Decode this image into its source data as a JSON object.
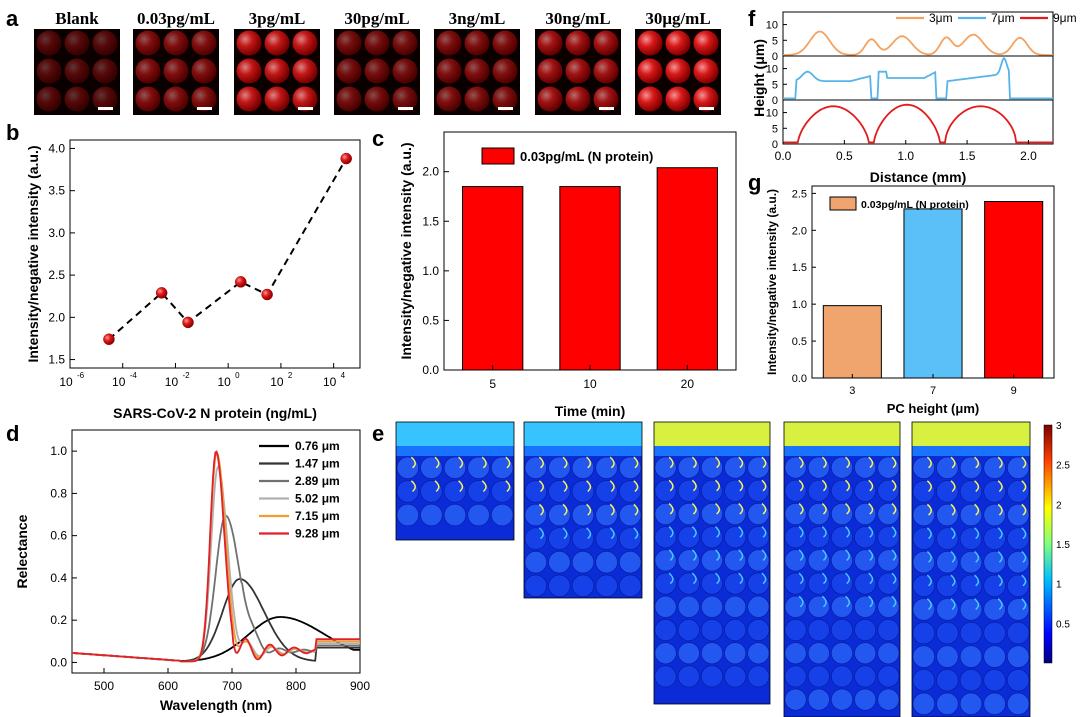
{
  "panel_letters": {
    "a": "a",
    "b": "b",
    "c": "c",
    "d": "d",
    "e": "e",
    "f": "f",
    "g": "g"
  },
  "colors": {
    "red": "#e41a1c",
    "orange": "#f4a261",
    "blue": "#56b4e9",
    "black": "#000000",
    "bar_red": "#ff0000",
    "bar_orange": "#f0a46e",
    "bar_blue": "#5bc0f8"
  },
  "chart_data": [
    {
      "id": "a",
      "type": "image-grid",
      "labels": [
        "Blank",
        "0.03pg/mL",
        "3pg/mL",
        "30pg/mL",
        "3ng/mL",
        "30ng/mL",
        "30μg/mL"
      ],
      "brightness": [
        0.35,
        0.55,
        0.85,
        0.5,
        0.55,
        0.7,
        0.95
      ]
    },
    {
      "id": "b",
      "type": "scatter",
      "xscale": "log",
      "x": [
        3e-05,
        0.003,
        0.03,
        3,
        30,
        30000
      ],
      "y": [
        1.74,
        2.29,
        1.94,
        2.42,
        2.27,
        3.88
      ],
      "xlabel": "SARS-CoV-2 N protein (ng/mL)",
      "ylabel": "Intensity/negative intensity (a.u.)",
      "xlim_exp": [
        -6,
        5
      ],
      "xticks_exp": [
        -6,
        -4,
        -2,
        0,
        2,
        4
      ],
      "xtick_labels": [
        "10",
        "10",
        "10",
        "10",
        "10",
        "10"
      ],
      "xtick_exps": [
        "-6",
        "-4",
        "-2",
        "0",
        "2",
        "4"
      ],
      "ylim": [
        1.4,
        4.1
      ],
      "yticks": [
        "1.5",
        "2.0",
        "2.5",
        "3.0",
        "3.5",
        "4.0"
      ]
    },
    {
      "id": "c",
      "type": "bar",
      "categories": [
        "5",
        "10",
        "20"
      ],
      "values": [
        1.85,
        1.85,
        2.04
      ],
      "legend": "0.03pg/mL (N protein)",
      "xlabel": "Time (min)",
      "ylabel": "Intensity/negative intensity (a.u.)",
      "ylim": [
        0,
        2.4
      ],
      "yticks": [
        "0.0",
        "0.5",
        "1.0",
        "1.5",
        "2.0"
      ]
    },
    {
      "id": "d",
      "type": "line",
      "xlabel": "Wavelength (nm)",
      "ylabel": "Relectance",
      "xlim": [
        450,
        900
      ],
      "ylim": [
        -0.05,
        1.1
      ],
      "xticks": [
        "500",
        "600",
        "700",
        "800",
        "900"
      ],
      "yticks": [
        "0.0",
        "0.2",
        "0.4",
        "0.6",
        "0.8",
        "1.0"
      ],
      "series": [
        {
          "name": "0.76 μm",
          "color": "#000000",
          "peak": 775,
          "amp": 0.21,
          "width": 70,
          "ripple": 0
        },
        {
          "name": "1.47 μm",
          "color": "#333333",
          "peak": 712,
          "amp": 0.39,
          "width": 38,
          "ripple": 0
        },
        {
          "name": "2.89 μm",
          "color": "#707070",
          "peak": 690,
          "amp": 0.69,
          "width": 22,
          "ripple": 0.03
        },
        {
          "name": "5.02 μm",
          "color": "#b0b0b0",
          "peak": 678,
          "amp": 0.92,
          "width": 15,
          "ripple": 0.05
        },
        {
          "name": "7.15 μm",
          "color": "#f39c32",
          "peak": 676,
          "amp": 0.99,
          "width": 14,
          "ripple": 0.06
        },
        {
          "name": "9.28 μm",
          "color": "#e0202a",
          "peak": 675,
          "amp": 0.995,
          "width": 13,
          "ripple": 0.08
        }
      ]
    },
    {
      "id": "e",
      "type": "heatmap",
      "colorbar_ticks": [
        "3",
        "2.5",
        "2",
        "1.5",
        "1",
        "0.5"
      ],
      "colorbar_range": [
        0,
        3
      ],
      "columns": [
        3,
        5,
        8,
        15,
        15
      ]
    },
    {
      "id": "f",
      "type": "line",
      "xlabel": "Distance (mm)",
      "ylabel": "Height (μm)",
      "xlim": [
        0,
        2.2
      ],
      "xticks": [
        "0.0",
        "0.5",
        "1.0",
        "1.5",
        "2.0"
      ],
      "yticks": [
        "0",
        "5",
        "10"
      ],
      "legend": [
        {
          "name": "3μm",
          "color": "#f4a261"
        },
        {
          "name": "7μm",
          "color": "#56b4e9"
        },
        {
          "name": "9μm",
          "color": "#e41a1c"
        }
      ]
    },
    {
      "id": "g",
      "type": "bar",
      "categories": [
        "3",
        "7",
        "9"
      ],
      "values": [
        0.98,
        2.29,
        2.39
      ],
      "legend": "0.03pg/mL (N protein)",
      "xlabel": "PC height (μm)",
      "ylabel": "Intensity/negative intensity (a.u.)",
      "ylim": [
        0,
        2.6
      ],
      "yticks": [
        "0.0",
        "0.5",
        "1.0",
        "1.5",
        "2.0",
        "2.5"
      ]
    }
  ]
}
